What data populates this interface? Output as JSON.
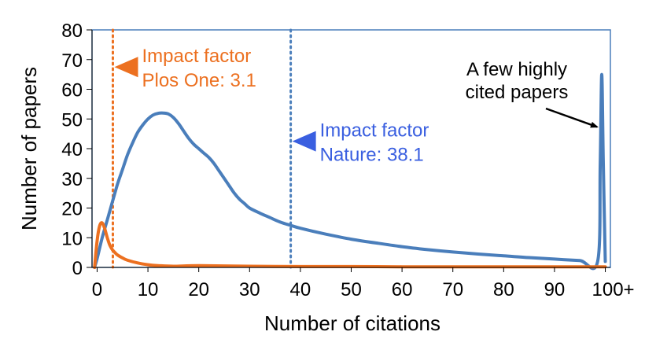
{
  "chart_data": {
    "type": "line",
    "xlabel": "Number of citations",
    "ylabel": "Number of papers",
    "xlim": [
      -1,
      101
    ],
    "ylim": [
      0,
      80
    ],
    "x_ticks": [
      {
        "value": 0,
        "label": "0"
      },
      {
        "value": 10,
        "label": "10"
      },
      {
        "value": 20,
        "label": "20"
      },
      {
        "value": 30,
        "label": "30"
      },
      {
        "value": 40,
        "label": "40"
      },
      {
        "value": 50,
        "label": "50"
      },
      {
        "value": 60,
        "label": "60"
      },
      {
        "value": 70,
        "label": "70"
      },
      {
        "value": 80,
        "label": "80"
      },
      {
        "value": 90,
        "label": "90"
      },
      {
        "value": 100,
        "label": "100+"
      }
    ],
    "y_ticks": [
      {
        "value": 0,
        "label": "0"
      },
      {
        "value": 10,
        "label": "10"
      },
      {
        "value": 20,
        "label": "20"
      },
      {
        "value": 30,
        "label": "30"
      },
      {
        "value": 40,
        "label": "40"
      },
      {
        "value": 50,
        "label": "50"
      },
      {
        "value": 60,
        "label": "60"
      },
      {
        "value": 70,
        "label": "70"
      },
      {
        "value": 80,
        "label": "80"
      }
    ],
    "grid": false,
    "legend": "none",
    "series": [
      {
        "color": "#4a7ebb",
        "x": [
          -0.5,
          0,
          1,
          2,
          3,
          4,
          5,
          6,
          7,
          8,
          9,
          10,
          11,
          12,
          13,
          14,
          15,
          16,
          17,
          18,
          19,
          20,
          21,
          22,
          23,
          24,
          25,
          26,
          27,
          28,
          29,
          30,
          32,
          34,
          36,
          38,
          40,
          45,
          50,
          55,
          60,
          65,
          70,
          75,
          80,
          85,
          90,
          95,
          98.5,
          99,
          99.3,
          99.6,
          100
        ],
        "y": [
          0,
          3,
          10,
          16,
          22,
          28,
          33,
          38,
          42,
          45.5,
          48,
          50,
          51.3,
          51.9,
          52,
          51.7,
          50.5,
          48.5,
          46,
          43.5,
          41.5,
          40,
          38.5,
          37,
          35,
          32.5,
          30,
          27.5,
          25,
          23,
          21.5,
          20,
          18.3,
          16.8,
          15.3,
          14.2,
          13.2,
          11.2,
          9.5,
          8.2,
          7,
          6,
          5.2,
          4.5,
          3.9,
          3.3,
          2.8,
          2.3,
          2,
          35,
          65,
          35,
          2
        ]
      },
      {
        "color": "#ec7020",
        "x": [
          -0.5,
          0,
          0.5,
          1,
          1.5,
          2,
          2.5,
          3,
          3.5,
          4,
          5,
          6,
          8,
          10,
          12,
          15,
          20,
          30,
          40,
          50,
          60,
          70,
          80,
          90,
          100
        ],
        "y": [
          0,
          9,
          14,
          15,
          13,
          10,
          7.5,
          6,
          5,
          4.2,
          3.2,
          2.4,
          1.5,
          0.9,
          0.6,
          0.4,
          0.6,
          0.4,
          0.3,
          0.3,
          0.2,
          0.2,
          0.2,
          0.2,
          0.2
        ]
      }
    ],
    "reference_lines": [
      {
        "x": 3.1,
        "color": "#ec7020",
        "style": "dotted"
      },
      {
        "x": 38.1,
        "color": "#4a7ebb",
        "style": "dotted"
      }
    ],
    "annotations": [
      {
        "lines": [
          "Impact factor",
          "Plos One: 3.1"
        ],
        "color": "#ec7020",
        "marker": "left-triangle",
        "anchor_x": 3.1,
        "anchor_y": 67.5
      },
      {
        "lines": [
          "Impact factor",
          "Nature: 38.1"
        ],
        "color": "#3a5fe0",
        "marker": "left-triangle",
        "anchor_x": 38.1,
        "anchor_y": 42.5
      },
      {
        "lines": [
          "A few highly",
          "cited papers"
        ],
        "color": "#000000",
        "marker": "arrow",
        "target_x": 99.3,
        "target_y": 46
      }
    ]
  }
}
